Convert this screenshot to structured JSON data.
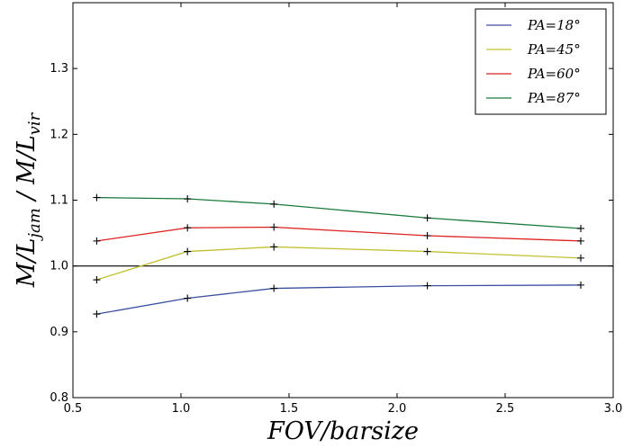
{
  "chart_data": {
    "type": "line",
    "title": "",
    "xlabel": "FOV/barsize",
    "ylabel": "M/L_jam / M/L_vir",
    "xlim": [
      0.5,
      3.0
    ],
    "ylim": [
      0.8,
      1.4
    ],
    "xticks": [
      "0.5",
      "1.0",
      "1.5",
      "2.0",
      "2.5",
      "3.0"
    ],
    "yticks": [
      "0.8",
      "0.9",
      "1.0",
      "1.1",
      "1.2",
      "1.3"
    ],
    "reference_line_y": 1.0,
    "grid": false,
    "legend_position": "top-right",
    "markers": "plus",
    "x": [
      0.61,
      1.03,
      1.43,
      2.14,
      2.85
    ],
    "series": [
      {
        "name": "PA=18°",
        "color": "#3a4fa0",
        "values": [
          0.927,
          0.951,
          0.966,
          0.97,
          0.971
        ]
      },
      {
        "name": "PA=45°",
        "color": "#c0c030",
        "values": [
          0.979,
          1.022,
          1.029,
          1.022,
          1.012
        ]
      },
      {
        "name": "PA=60°",
        "color": "#dd2020",
        "values": [
          1.038,
          1.058,
          1.059,
          1.046,
          1.038
        ]
      },
      {
        "name": "PA=87°",
        "color": "#1a7a3a",
        "values": [
          1.104,
          1.102,
          1.094,
          1.073,
          1.057
        ]
      }
    ]
  }
}
